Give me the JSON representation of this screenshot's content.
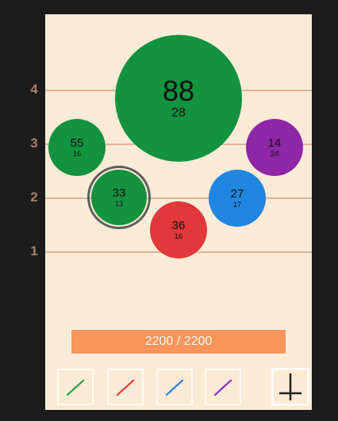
{
  "rows": [
    "4",
    "3",
    "2",
    "1"
  ],
  "bubbles": [
    {
      "id": "b88",
      "value": "88",
      "sub": "28",
      "color": "#13923f"
    },
    {
      "id": "b55",
      "value": "55",
      "sub": "16",
      "color": "#13923f"
    },
    {
      "id": "b14",
      "value": "14",
      "sub": "24",
      "color": "#8e26a6"
    },
    {
      "id": "b33",
      "value": "33",
      "sub": "13",
      "color": "#13923f",
      "selected": true
    },
    {
      "id": "b27",
      "value": "27",
      "sub": "17",
      "color": "#2087e0"
    },
    {
      "id": "b36",
      "value": "36",
      "sub": "16",
      "color": "#e0383b"
    }
  ],
  "progress": {
    "text": "2200 / 2200",
    "fraction": 1.0
  },
  "tools": [
    {
      "name": "green-line-tool",
      "color": "#2aa14a"
    },
    {
      "name": "red-line-tool",
      "color": "#e2413a"
    },
    {
      "name": "blue-line-tool",
      "color": "#2f7fd8"
    },
    {
      "name": "purple-line-tool",
      "color": "#8a2fc9"
    }
  ],
  "colors": {
    "board": "#faebd7",
    "background": "#1c1c1c",
    "grid": "#e2b39a",
    "progress": "#f7955b"
  }
}
